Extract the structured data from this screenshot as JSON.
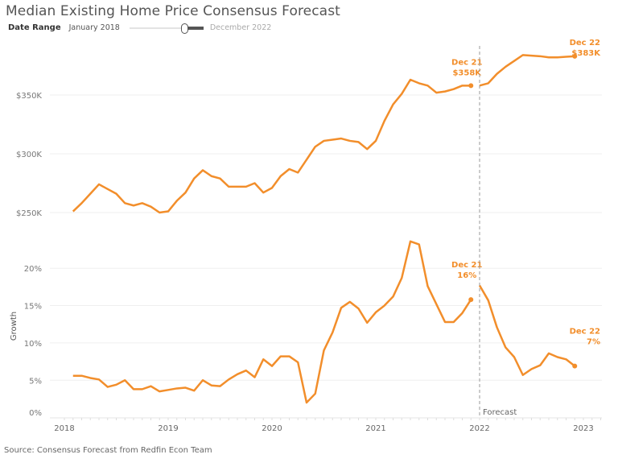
{
  "header": {
    "title": "Median Existing Home Price Consensus Forecast",
    "date_range_label": "Date Range",
    "date_range_start": "January 2018",
    "date_range_end": "December 2022"
  },
  "source": "Source: Consensus Forecast from Redfin Econ Team",
  "forecast_label": "Forecast",
  "colors": {
    "series": "#F28E2B",
    "grid": "#efefef",
    "forecast_line": "#999999"
  },
  "chart_data": [
    {
      "type": "line",
      "title": "",
      "ylabel": "",
      "x_ticks": [
        "2018",
        "2019",
        "2020",
        "2021",
        "2022",
        "2023"
      ],
      "y_ticks": [
        {
          "v": 250,
          "label": "$250K"
        },
        {
          "v": 300,
          "label": "$300K"
        },
        {
          "v": 350,
          "label": "$350K"
        }
      ],
      "ylim": [
        232,
        390
      ],
      "units": "thousand USD",
      "start_month": "Feb 2018",
      "actual": [
        251,
        258,
        266,
        274,
        270,
        266,
        258,
        256,
        258,
        255,
        250,
        251,
        260,
        267,
        279,
        286,
        281,
        279,
        272,
        272,
        272,
        275,
        267,
        271,
        281,
        287,
        284,
        295,
        306,
        311,
        312,
        313,
        311,
        310,
        304,
        311,
        328,
        342,
        351,
        363,
        360,
        358,
        352,
        353,
        355,
        358,
        358
      ],
      "forecast_start_month": "Jan 2022",
      "forecast": [
        358,
        360,
        368,
        374,
        379,
        384,
        383.5,
        383,
        382,
        382,
        382.5,
        383
      ],
      "annotations": [
        {
          "line1": "Dec 21",
          "line2": "$358K"
        },
        {
          "line1": "Dec 22",
          "line2": "$383K"
        }
      ]
    },
    {
      "type": "line",
      "title": "",
      "ylabel": "Growth",
      "y_ticks": [
        {
          "v": 0,
          "label": "0%"
        },
        {
          "v": 5,
          "label": "5%"
        },
        {
          "v": 10,
          "label": "10%"
        },
        {
          "v": 15,
          "label": "15%"
        },
        {
          "v": 20,
          "label": "20%"
        }
      ],
      "ylim": [
        0,
        24.5
      ],
      "units": "percent",
      "start_month": "Feb 2018",
      "actual": [
        5.6,
        5.6,
        5.3,
        5.1,
        4.1,
        4.4,
        5.0,
        3.8,
        3.8,
        4.2,
        3.5,
        3.7,
        3.9,
        4.0,
        3.6,
        5.0,
        4.3,
        4.2,
        5.1,
        5.8,
        6.3,
        5.4,
        7.8,
        6.9,
        8.2,
        8.2,
        7.4,
        2.0,
        3.2,
        9.0,
        11.4,
        14.7,
        15.5,
        14.6,
        12.7,
        14.1,
        15.0,
        16.2,
        18.7,
        23.6,
        23.2,
        17.6,
        15.2,
        12.8,
        12.8,
        14.0,
        15.8
      ],
      "forecast_start_month": "Jan 2022",
      "forecast": [
        17.7,
        15.7,
        12.1,
        9.4,
        8.1,
        5.7,
        6.5,
        7.0,
        8.6,
        8.1,
        7.8,
        6.9
      ],
      "annotations": [
        {
          "line1": "Dec 21",
          "line2": "16%"
        },
        {
          "line1": "Dec 22",
          "line2": "7%"
        }
      ]
    }
  ]
}
